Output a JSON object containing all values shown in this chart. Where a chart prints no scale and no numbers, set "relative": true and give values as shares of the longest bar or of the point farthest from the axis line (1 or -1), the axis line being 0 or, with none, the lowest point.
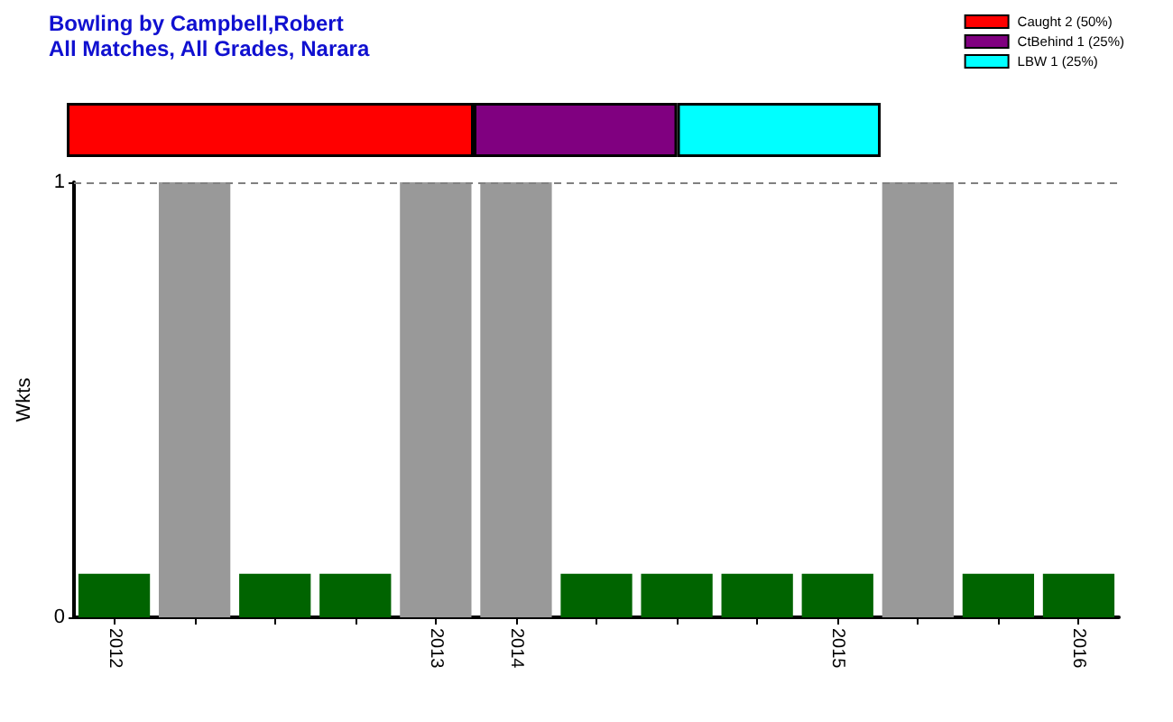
{
  "chart_data": [
    {
      "type": "bar",
      "title": "Bowling by Campbell,Robert",
      "subtitle": "All Matches, All Grades, Narara",
      "orientation": "horizontal",
      "stacked": true,
      "relative": true,
      "categories": [
        null
      ],
      "legend": "top right",
      "series": [
        {
          "name": "Caught 2 (50%)",
          "color": "#ff0000",
          "values": [
            0.5
          ]
        },
        {
          "name": "CtBehind 1 (25%)",
          "color": "#800080",
          "values": [
            0.25
          ]
        },
        {
          "name": "LBW 1 (25%)",
          "color": "#00ffff",
          "values": [
            0.25
          ]
        }
      ]
    },
    {
      "type": "bar",
      "ylabel": "Wkts",
      "categories": [
        "2012",
        null,
        null,
        null,
        "2013",
        "2014",
        null,
        null,
        null,
        "2015",
        null,
        null,
        "2016"
      ],
      "values": [
        0.1,
        1,
        0.1,
        0.1,
        1,
        1,
        0.1,
        0.1,
        0.1,
        0.1,
        1,
        0.1,
        0.1
      ],
      "colors": [
        "#006400",
        "#999999",
        "#006400",
        "#006400",
        "#999999",
        "#999999",
        "#006400",
        "#006400",
        "#006400",
        "#006400",
        "#999999",
        "#006400",
        "#006400"
      ],
      "ylim": [
        0,
        1
      ],
      "yticks": [
        0,
        1
      ],
      "ref_lines": [
        {
          "axis": "y",
          "value": 1,
          "color": "#808080",
          "line_style": "dashed"
        }
      ]
    }
  ]
}
